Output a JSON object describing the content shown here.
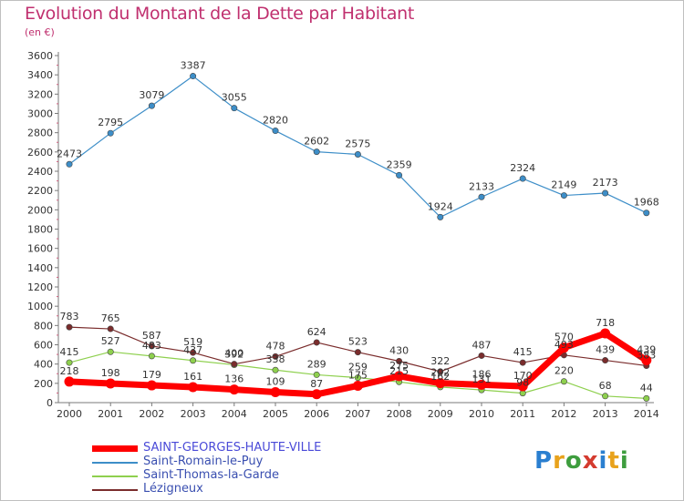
{
  "chart_data": {
    "type": "line",
    "title": "Evolution du Montant de la Dette par Habitant",
    "subtitle": "(en €)",
    "x": [
      "2000",
      "2001",
      "2002",
      "2003",
      "2004",
      "2005",
      "2006",
      "2007",
      "2008",
      "2009",
      "2010",
      "2011",
      "2012",
      "2013",
      "2014"
    ],
    "ylim": [
      0,
      3600
    ],
    "yticks": [
      0,
      200,
      400,
      600,
      800,
      1000,
      1200,
      1400,
      1600,
      1800,
      2000,
      2200,
      2400,
      2600,
      2800,
      3000,
      3200,
      3400,
      3600
    ],
    "grid": false,
    "legend_position": "bottom-left",
    "series": [
      {
        "name": "SAINT-GEORGES-HAUTE-VILLE",
        "color": "#ff0000",
        "values": [
          218,
          198,
          179,
          161,
          136,
          109,
          87,
          175,
          275,
          202,
          186,
          170,
          570,
          718,
          439
        ]
      },
      {
        "name": "Saint-Romain-le-Puy",
        "color": "#3d8ec8",
        "values": [
          2473,
          2795,
          3079,
          3387,
          3055,
          2820,
          2602,
          2575,
          2359,
          1924,
          2133,
          2324,
          2149,
          2173,
          1968
        ]
      },
      {
        "name": "Saint-Thomas-la-Garde",
        "color": "#8ed04e",
        "values": [
          415,
          527,
          483,
          437,
          392,
          338,
          289,
          259,
          215,
          162,
          131,
          98,
          220,
          68,
          44
        ]
      },
      {
        "name": "Lézigneux",
        "color": "#7a2c2c",
        "values": [
          783,
          765,
          587,
          519,
          400,
          478,
          624,
          523,
          430,
          322,
          487,
          415,
          493,
          439,
          383
        ]
      }
    ]
  },
  "logo": {
    "letters": [
      "P",
      "r",
      "o",
      "x",
      "i",
      "t",
      "i"
    ],
    "colors": [
      "#2a7fd0",
      "#e8a21c",
      "#3e9d3e",
      "#d43b2f",
      "#2a7fd0",
      "#e8a21c",
      "#3e9d3e"
    ]
  }
}
